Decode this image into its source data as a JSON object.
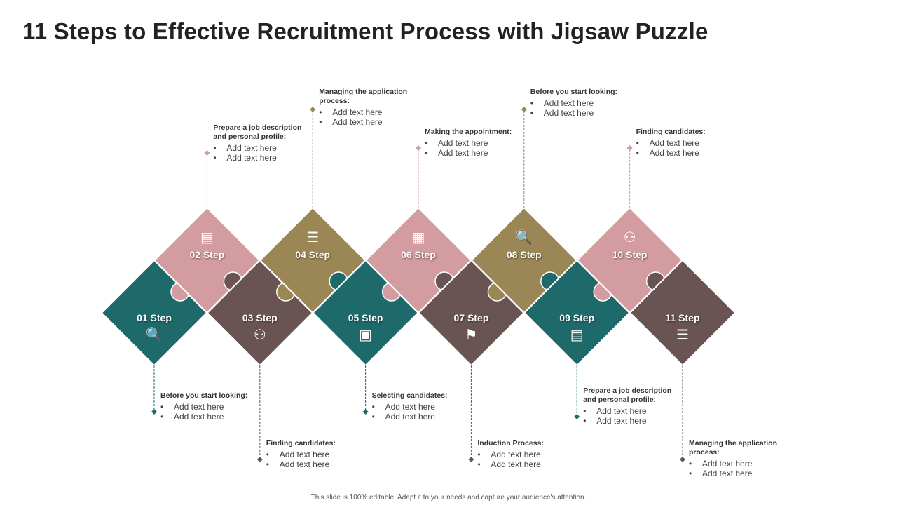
{
  "title": "11 Steps to Effective Recruitment Process with Jigsaw Puzzle",
  "footer": "This slide is 100% editable. Adapt it to your needs and capture your audience's attention.",
  "colors": {
    "teal": "#1e6a6b",
    "pink": "#d39ca0",
    "olive": "#9b8756",
    "brown": "#6a5353"
  },
  "steps": [
    {
      "label": "01 Step",
      "icon": "magnifier-eye-icon",
      "color": "#1e6a6b",
      "title": "Before you start looking:",
      "bullets": [
        "Add text here",
        "Add text here"
      ]
    },
    {
      "label": "02 Step",
      "icon": "resume-document-icon",
      "color": "#d39ca0",
      "title": "Prepare a job description and personal profile:",
      "bullets": [
        "Add text here",
        "Add text here"
      ]
    },
    {
      "label": "03 Step",
      "icon": "team-hierarchy-icon",
      "color": "#6a5353",
      "title": "Finding candidates:",
      "bullets": [
        "Add text here",
        "Add text here"
      ]
    },
    {
      "label": "04 Step",
      "icon": "server-gear-icon",
      "color": "#9b8756",
      "title": "Managing the application process:",
      "bullets": [
        "Add text here",
        "Add text here"
      ]
    },
    {
      "label": "05 Step",
      "icon": "monitor-search-icon",
      "color": "#1e6a6b",
      "title": "Selecting candidates:",
      "bullets": [
        "Add text here",
        "Add text here"
      ]
    },
    {
      "label": "06 Step",
      "icon": "calendar-clock-icon",
      "color": "#d39ca0",
      "title": "Making the appointment:",
      "bullets": [
        "Add text here",
        "Add text here"
      ]
    },
    {
      "label": "07 Step",
      "icon": "presentation-icon",
      "color": "#6a5353",
      "title": "Induction Process:",
      "bullets": [
        "Add text here",
        "Add text here"
      ]
    },
    {
      "label": "08 Step",
      "icon": "magnifier-eye-icon",
      "color": "#9b8756",
      "title": "Before you start looking:",
      "bullets": [
        "Add text here",
        "Add text here"
      ]
    },
    {
      "label": "09 Step",
      "icon": "resume-document-icon",
      "color": "#1e6a6b",
      "title": "Prepare a job description and personal profile:",
      "bullets": [
        "Add text here",
        "Add text here"
      ]
    },
    {
      "label": "10 Step",
      "icon": "team-hierarchy-icon",
      "color": "#d39ca0",
      "title": "Finding candidates:",
      "bullets": [
        "Add text here",
        "Add text here"
      ]
    },
    {
      "label": "11 Step",
      "icon": "server-gear-icon",
      "color": "#6a5353",
      "title": "Managing the application process:",
      "bullets": [
        "Add text here",
        "Add text here"
      ]
    }
  ]
}
